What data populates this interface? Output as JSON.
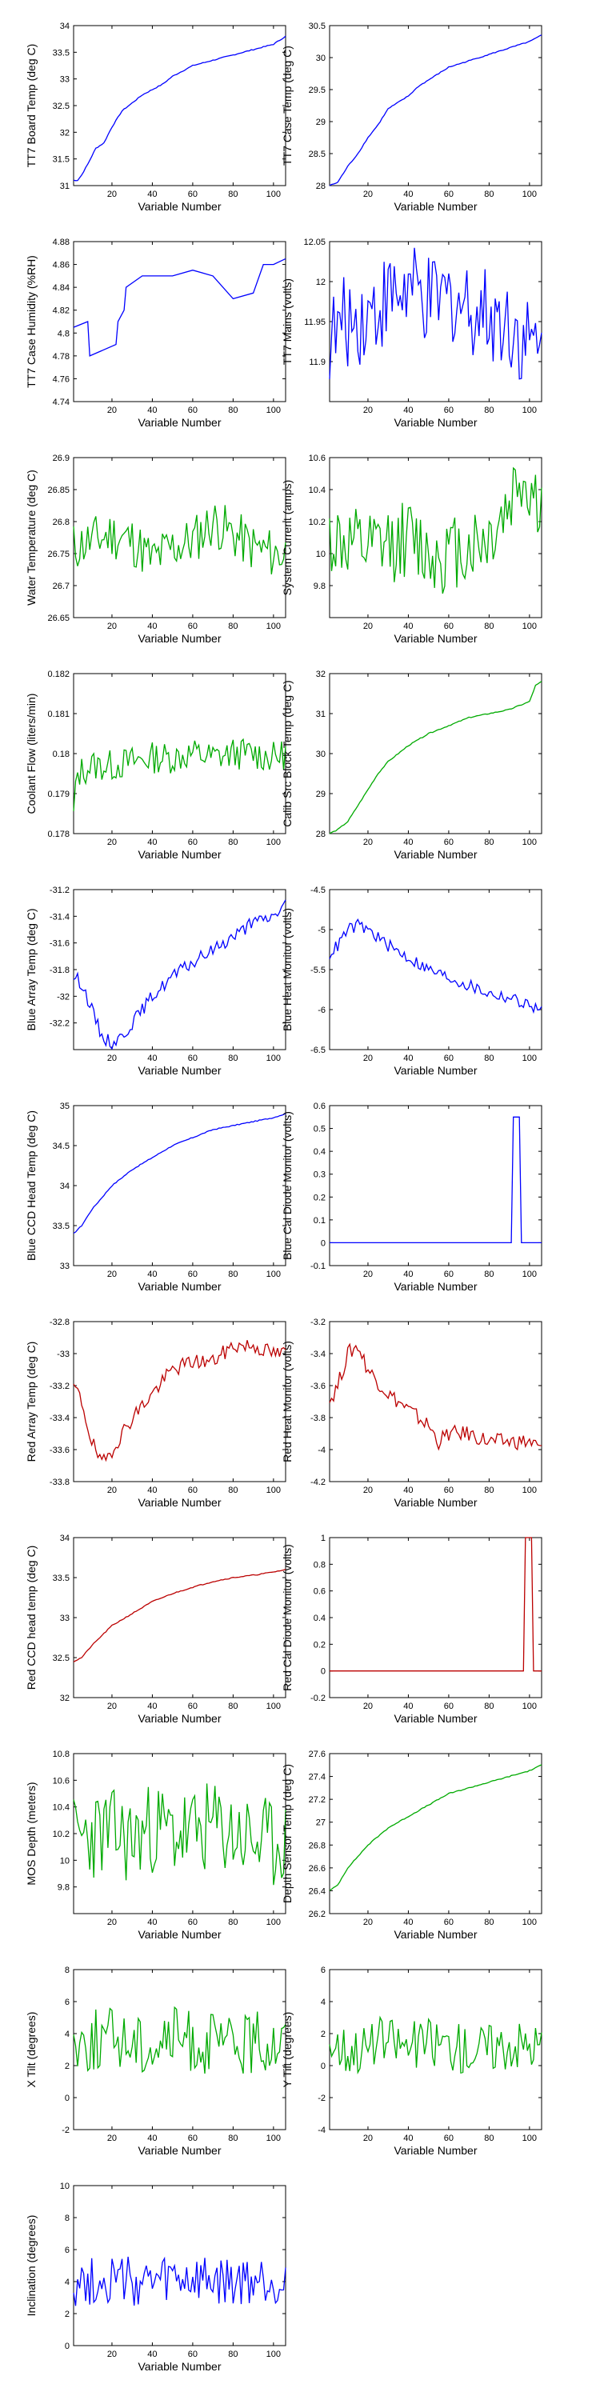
{
  "figure": {
    "xlabel": "Variable Number"
  },
  "chart_data": [
    {
      "type": "line",
      "ylabel": "TT7 Board Temp (deg C)",
      "xlim": [
        1,
        106
      ],
      "ylim": [
        31,
        34
      ],
      "xticks": [
        "20",
        "40",
        "60",
        "80",
        "100"
      ],
      "yticks": [
        "31",
        "31.5",
        "32",
        "32.5",
        "33",
        "33.5",
        "34"
      ],
      "color": "#0000ff",
      "pattern": "smooth",
      "x": [
        1,
        3,
        5,
        8,
        12,
        16,
        20,
        25,
        30,
        35,
        40,
        45,
        50,
        55,
        60,
        70,
        80,
        90,
        100,
        106
      ],
      "values": [
        31.1,
        31.1,
        31.2,
        31.4,
        31.7,
        31.8,
        32.1,
        32.4,
        32.55,
        32.7,
        32.8,
        32.9,
        33.05,
        33.15,
        33.25,
        33.35,
        33.45,
        33.55,
        33.65,
        33.8
      ]
    },
    {
      "type": "line",
      "ylabel": "TT7 Case Temp (deg C)",
      "xlim": [
        1,
        106
      ],
      "ylim": [
        28,
        30.5
      ],
      "xticks": [
        "20",
        "40",
        "60",
        "80",
        "100"
      ],
      "yticks": [
        "28",
        "28.5",
        "29",
        "29.5",
        "30",
        "30.5"
      ],
      "color": "#0000ff",
      "pattern": "smooth",
      "x": [
        1,
        5,
        10,
        15,
        20,
        25,
        30,
        35,
        40,
        45,
        50,
        55,
        60,
        70,
        80,
        90,
        100,
        106
      ],
      "values": [
        28.0,
        28.05,
        28.3,
        28.5,
        28.75,
        28.95,
        29.2,
        29.3,
        29.4,
        29.55,
        29.65,
        29.75,
        29.85,
        29.95,
        30.05,
        30.15,
        30.25,
        30.35
      ]
    },
    {
      "type": "line",
      "ylabel": "TT7 Case Humidity (%RH)",
      "xlim": [
        1,
        106
      ],
      "ylim": [
        4.74,
        4.88
      ],
      "xticks": [
        "20",
        "40",
        "60",
        "80",
        "100"
      ],
      "yticks": [
        "4.74",
        "4.76",
        "4.78",
        "4.8",
        "4.82",
        "4.84",
        "4.86",
        "4.88"
      ],
      "color": "#0000ff",
      "pattern": "step",
      "x": [
        1,
        8,
        9,
        22,
        23,
        26,
        27,
        35,
        40,
        50,
        60,
        70,
        80,
        90,
        95,
        100,
        106
      ],
      "values": [
        4.805,
        4.81,
        4.78,
        4.79,
        4.81,
        4.82,
        4.84,
        4.85,
        4.85,
        4.85,
        4.855,
        4.85,
        4.83,
        4.835,
        4.86,
        4.86,
        4.865
      ]
    },
    {
      "type": "line",
      "ylabel": "TT7 Mains  (volts)",
      "xlim": [
        1,
        106
      ],
      "ylim": [
        11.85,
        12.05
      ],
      "xticks": [
        "20",
        "40",
        "60",
        "80",
        "100"
      ],
      "yticks": [
        "11.9",
        "11.95",
        "12",
        "12.05"
      ],
      "color": "#0000ff",
      "pattern": "noisy",
      "x": [
        1,
        10,
        20,
        30,
        40,
        50,
        60,
        70,
        80,
        90,
        100,
        106
      ],
      "values": [
        11.93,
        11.95,
        11.96,
        11.98,
        11.99,
        11.97,
        11.98,
        11.97,
        11.96,
        11.95,
        11.92,
        11.91
      ],
      "amp": 0.06
    },
    {
      "type": "line",
      "ylabel": "Water Temperature (deg C)",
      "xlim": [
        1,
        106
      ],
      "ylim": [
        26.65,
        26.9
      ],
      "xticks": [
        "20",
        "40",
        "60",
        "80",
        "100"
      ],
      "yticks": [
        "26.65",
        "26.7",
        "26.75",
        "26.8",
        "26.85",
        "26.9"
      ],
      "color": "#00aa00",
      "pattern": "noisy",
      "x": [
        1,
        10,
        20,
        30,
        40,
        50,
        60,
        70,
        80,
        90,
        100,
        106
      ],
      "values": [
        26.76,
        26.77,
        26.78,
        26.77,
        26.74,
        26.76,
        26.77,
        26.8,
        26.78,
        26.76,
        26.75,
        26.75
      ],
      "amp": 0.04
    },
    {
      "type": "line",
      "ylabel": "System Current (amps)",
      "xlim": [
        1,
        106
      ],
      "ylim": [
        9.6,
        10.6
      ],
      "xticks": [
        "20",
        "40",
        "60",
        "80",
        "100"
      ],
      "yticks": [
        "9.8",
        "10",
        "10.2",
        "10.4",
        "10.6"
      ],
      "color": "#00aa00",
      "pattern": "noisy",
      "x": [
        1,
        10,
        20,
        30,
        40,
        50,
        60,
        70,
        80,
        90,
        95,
        100,
        106
      ],
      "values": [
        10.1,
        10.05,
        10.0,
        10.05,
        10.1,
        10.0,
        10.0,
        10.05,
        10.1,
        10.3,
        10.5,
        10.4,
        10.3
      ],
      "amp": 0.25
    },
    {
      "type": "line",
      "ylabel": "Coolant Flow (liters/min)",
      "xlim": [
        1,
        106
      ],
      "ylim": [
        0.178,
        0.182
      ],
      "xticks": [
        "20",
        "40",
        "60",
        "80",
        "100"
      ],
      "yticks": [
        "0.178",
        "0.179",
        "0.18",
        "0.181",
        "0.182"
      ],
      "color": "#00aa00",
      "pattern": "noisy",
      "x": [
        1,
        3,
        10,
        20,
        30,
        40,
        50,
        60,
        70,
        80,
        90,
        100,
        106
      ],
      "values": [
        0.1785,
        0.1795,
        0.1797,
        0.1797,
        0.1798,
        0.1799,
        0.1799,
        0.18,
        0.1799,
        0.18,
        0.18,
        0.1799,
        0.18
      ],
      "amp": 0.0004
    },
    {
      "type": "line",
      "ylabel": "Calib Src Block Temp (deg C)",
      "xlim": [
        1,
        106
      ],
      "ylim": [
        28,
        32
      ],
      "xticks": [
        "20",
        "40",
        "60",
        "80",
        "100"
      ],
      "yticks": [
        "28",
        "29",
        "30",
        "31",
        "32"
      ],
      "color": "#00aa00",
      "pattern": "smooth",
      "x": [
        1,
        5,
        10,
        15,
        20,
        25,
        30,
        35,
        40,
        50,
        60,
        70,
        80,
        90,
        100,
        103,
        106
      ],
      "values": [
        28.0,
        28.1,
        28.3,
        28.7,
        29.1,
        29.5,
        29.8,
        30.0,
        30.2,
        30.5,
        30.7,
        30.9,
        31.0,
        31.1,
        31.3,
        31.7,
        31.8
      ]
    },
    {
      "type": "line",
      "ylabel": "Blue Array Temp (deg C)",
      "xlim": [
        1,
        106
      ],
      "ylim": [
        -32.4,
        -31.2
      ],
      "xticks": [
        "20",
        "40",
        "60",
        "80",
        "100"
      ],
      "yticks": [
        "-32.2",
        "-32",
        "-31.8",
        "-31.6",
        "-31.4",
        "-31.2"
      ],
      "color": "#0000ff",
      "pattern": "noisy",
      "x": [
        1,
        5,
        10,
        15,
        20,
        25,
        30,
        40,
        50,
        60,
        70,
        80,
        90,
        100,
        106
      ],
      "values": [
        -31.85,
        -31.9,
        -32.1,
        -32.3,
        -32.35,
        -32.3,
        -32.2,
        -32.0,
        -31.85,
        -31.75,
        -31.65,
        -31.55,
        -31.45,
        -31.4,
        -31.3
      ],
      "amp": 0.05
    },
    {
      "type": "line",
      "ylabel": "Blue Heat Monitor (volts)",
      "xlim": [
        1,
        106
      ],
      "ylim": [
        -6.5,
        -4.5
      ],
      "xticks": [
        "20",
        "40",
        "60",
        "80",
        "100"
      ],
      "yticks": [
        "-6.5",
        "-6",
        "-5.5",
        "-5",
        "-4.5"
      ],
      "color": "#0000ff",
      "pattern": "noisy",
      "x": [
        1,
        5,
        10,
        15,
        20,
        30,
        40,
        50,
        60,
        70,
        80,
        90,
        100,
        106
      ],
      "values": [
        -5.3,
        -5.2,
        -5.0,
        -4.95,
        -5.0,
        -5.2,
        -5.35,
        -5.5,
        -5.6,
        -5.7,
        -5.8,
        -5.85,
        -5.95,
        -6.0
      ],
      "amp": 0.08
    },
    {
      "type": "line",
      "ylabel": "Blue CCD Head Temp (deg C)",
      "xlim": [
        1,
        106
      ],
      "ylim": [
        33,
        35
      ],
      "xticks": [
        "20",
        "40",
        "60",
        "80",
        "100"
      ],
      "yticks": [
        "33",
        "33.5",
        "34",
        "34.5",
        "35"
      ],
      "color": "#0000ff",
      "pattern": "smooth",
      "x": [
        1,
        5,
        10,
        15,
        20,
        30,
        40,
        50,
        60,
        70,
        80,
        90,
        100,
        106
      ],
      "values": [
        33.4,
        33.5,
        33.7,
        33.85,
        34.0,
        34.2,
        34.35,
        34.5,
        34.6,
        34.7,
        34.75,
        34.8,
        34.85,
        34.9
      ]
    },
    {
      "type": "line",
      "ylabel": "Blue Cal Diode Monitor (volts)",
      "xlim": [
        1,
        106
      ],
      "ylim": [
        -0.1,
        0.6
      ],
      "xticks": [
        "20",
        "40",
        "60",
        "80",
        "100"
      ],
      "yticks": [
        "-0.1",
        "0",
        "0.1",
        "0.2",
        "0.3",
        "0.4",
        "0.5",
        "0.6"
      ],
      "color": "#0000ff",
      "pattern": "step",
      "x": [
        1,
        90,
        91,
        92,
        95,
        96,
        106
      ],
      "values": [
        0,
        0,
        0,
        0.55,
        0.55,
        0,
        0
      ]
    },
    {
      "type": "line",
      "ylabel": "Red Array Temp (deg C)",
      "xlim": [
        1,
        106
      ],
      "ylim": [
        -33.8,
        -32.8
      ],
      "xticks": [
        "20",
        "40",
        "60",
        "80",
        "100"
      ],
      "yticks": [
        "-33.8",
        "-33.6",
        "-33.4",
        "-33.2",
        "-33",
        "-32.8"
      ],
      "color": "#bb0000",
      "pattern": "noisy",
      "x": [
        1,
        5,
        10,
        15,
        20,
        30,
        40,
        50,
        60,
        70,
        80,
        90,
        100,
        106
      ],
      "values": [
        -33.2,
        -33.3,
        -33.55,
        -33.7,
        -33.6,
        -33.4,
        -33.25,
        -33.1,
        -33.05,
        -33.05,
        -32.95,
        -32.95,
        -33.0,
        -33.0
      ],
      "amp": 0.05
    },
    {
      "type": "line",
      "ylabel": "Red Heat Monitor (volts)",
      "xlim": [
        1,
        106
      ],
      "ylim": [
        -4.2,
        -3.2
      ],
      "xticks": [
        "20",
        "40",
        "60",
        "80",
        "100"
      ],
      "yticks": [
        "-4.2",
        "-4",
        "-3.8",
        "-3.6",
        "-3.4",
        "-3.2"
      ],
      "color": "#bb0000",
      "pattern": "noisy",
      "x": [
        1,
        5,
        10,
        15,
        20,
        30,
        40,
        50,
        55,
        60,
        70,
        80,
        90,
        100,
        106
      ],
      "values": [
        -3.7,
        -3.6,
        -3.4,
        -3.35,
        -3.5,
        -3.65,
        -3.75,
        -3.85,
        -3.95,
        -3.9,
        -3.9,
        -3.95,
        -3.95,
        -3.95,
        -4.0
      ],
      "amp": 0.05
    },
    {
      "type": "line",
      "ylabel": "Red CCD head temp (deg C)",
      "xlim": [
        1,
        106
      ],
      "ylim": [
        32,
        34
      ],
      "xticks": [
        "20",
        "40",
        "60",
        "80",
        "100"
      ],
      "yticks": [
        "32",
        "32.5",
        "33",
        "33.5",
        "34"
      ],
      "color": "#bb0000",
      "pattern": "smooth",
      "x": [
        1,
        5,
        10,
        20,
        30,
        40,
        50,
        60,
        70,
        80,
        90,
        100,
        106
      ],
      "values": [
        32.45,
        32.5,
        32.65,
        32.9,
        33.05,
        33.2,
        33.3,
        33.38,
        33.45,
        33.5,
        33.53,
        33.57,
        33.6
      ]
    },
    {
      "type": "line",
      "ylabel": "Red Cal Diode Monitor (volts)",
      "xlim": [
        1,
        106
      ],
      "ylim": [
        -0.2,
        1
      ],
      "xticks": [
        "20",
        "40",
        "60",
        "80",
        "100"
      ],
      "yticks": [
        "-0.2",
        "0",
        "0.2",
        "0.4",
        "0.6",
        "0.8",
        "1"
      ],
      "color": "#bb0000",
      "pattern": "step",
      "x": [
        1,
        96,
        97,
        98,
        101,
        102,
        106
      ],
      "values": [
        0,
        0,
        0,
        1.0,
        1.0,
        0,
        0
      ]
    },
    {
      "type": "line",
      "ylabel": "MOS Depth  (meters)",
      "xlim": [
        1,
        106
      ],
      "ylim": [
        9.6,
        10.8
      ],
      "xticks": [
        "20",
        "40",
        "60",
        "80",
        "100"
      ],
      "yticks": [
        "9.8",
        "10",
        "10.2",
        "10.4",
        "10.6",
        "10.8"
      ],
      "color": "#00aa00",
      "pattern": "noisy",
      "x": [
        1,
        10,
        20,
        30,
        40,
        50,
        60,
        70,
        80,
        90,
        100,
        106
      ],
      "values": [
        10.15,
        10.2,
        10.2,
        10.15,
        10.25,
        10.2,
        10.2,
        10.25,
        10.2,
        10.15,
        10.1,
        10.2
      ],
      "amp": 0.35
    },
    {
      "type": "line",
      "ylabel": "Depth Sensor Temp (deg C)",
      "xlim": [
        1,
        106
      ],
      "ylim": [
        26.2,
        27.6
      ],
      "xticks": [
        "20",
        "40",
        "60",
        "80",
        "100"
      ],
      "yticks": [
        "26.2",
        "26.4",
        "26.6",
        "26.8",
        "27",
        "27.2",
        "27.4",
        "27.6"
      ],
      "color": "#00aa00",
      "pattern": "smooth",
      "x": [
        1,
        5,
        10,
        20,
        30,
        40,
        50,
        60,
        70,
        80,
        90,
        100,
        106
      ],
      "values": [
        26.4,
        26.45,
        26.6,
        26.8,
        26.95,
        27.05,
        27.15,
        27.25,
        27.3,
        27.35,
        27.4,
        27.45,
        27.5
      ]
    },
    {
      "type": "line",
      "ylabel": "X Tilt  (degrees)",
      "xlim": [
        1,
        106
      ],
      "ylim": [
        -2,
        8
      ],
      "xticks": [
        "20",
        "40",
        "60",
        "80",
        "100"
      ],
      "yticks": [
        "-2",
        "0",
        "2",
        "4",
        "6",
        "8"
      ],
      "color": "#00aa00",
      "pattern": "noisy",
      "x": [
        1,
        10,
        20,
        30,
        40,
        50,
        60,
        70,
        80,
        90,
        100,
        106
      ],
      "values": [
        3.5,
        3.5,
        3.8,
        3.5,
        3.2,
        3.8,
        3.5,
        3.3,
        3.2,
        3.4,
        3.5,
        3.5
      ],
      "amp": 2.0
    },
    {
      "type": "line",
      "ylabel": "Y Tilt  (degrees)",
      "xlim": [
        1,
        106
      ],
      "ylim": [
        -4,
        6
      ],
      "xticks": [
        "20",
        "40",
        "60",
        "80",
        "100"
      ],
      "yticks": [
        "-4",
        "-2",
        "0",
        "2",
        "4",
        "6"
      ],
      "color": "#00aa00",
      "pattern": "noisy",
      "x": [
        1,
        10,
        20,
        30,
        40,
        50,
        60,
        70,
        80,
        90,
        100,
        106
      ],
      "values": [
        1.5,
        1.0,
        1.2,
        1.6,
        1.2,
        1.5,
        1.3,
        1.0,
        1.2,
        1.4,
        1.3,
        1.2
      ],
      "amp": 1.6
    },
    {
      "type": "line",
      "ylabel": "Inclination  (degrees)",
      "xlim": [
        1,
        106
      ],
      "ylim": [
        0,
        10
      ],
      "xticks": [
        "20",
        "40",
        "60",
        "80",
        "100"
      ],
      "yticks": [
        "0",
        "2",
        "4",
        "6",
        "8",
        "10"
      ],
      "color": "#0000ff",
      "pattern": "noisy",
      "x": [
        1,
        10,
        20,
        30,
        40,
        50,
        60,
        70,
        80,
        90,
        100,
        106
      ],
      "values": [
        4.0,
        4.0,
        4.2,
        3.9,
        3.8,
        4.1,
        4.0,
        3.9,
        3.8,
        4.0,
        4.0,
        4.0
      ],
      "amp": 1.6
    }
  ]
}
